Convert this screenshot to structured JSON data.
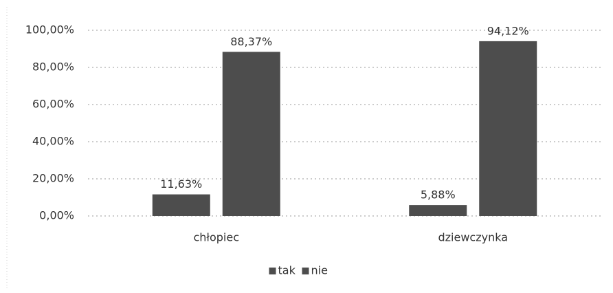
{
  "chart_data": {
    "type": "bar",
    "categories": [
      "chłopiec",
      "dziewczynka"
    ],
    "series": [
      {
        "name": "tak",
        "color": "#4d4d4d",
        "values": [
          11.63,
          5.88
        ],
        "value_labels": [
          "11,63%",
          "5,88%"
        ]
      },
      {
        "name": "nie",
        "color": "#4d4d4d",
        "values": [
          88.37,
          94.12
        ],
        "value_labels": [
          "88,37%",
          "94,12%"
        ]
      }
    ],
    "ylim": [
      0,
      100
    ],
    "yticks": [
      {
        "value": 0,
        "label": "0,00%"
      },
      {
        "value": 20,
        "label": "20,00%"
      },
      {
        "value": 40,
        "label": "40,00%"
      },
      {
        "value": 60,
        "label": "60,00%"
      },
      {
        "value": 80,
        "label": "80,00%"
      },
      {
        "value": 100,
        "label": "100,00%"
      }
    ],
    "grid": true,
    "legend": "bottom"
  }
}
